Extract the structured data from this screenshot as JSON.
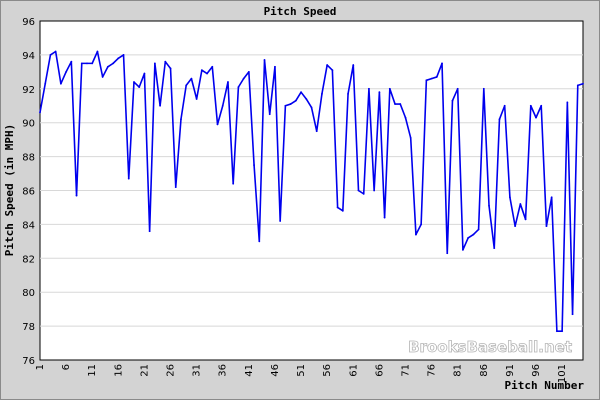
{
  "chart_data": {
    "type": "line",
    "title": "Pitch Speed",
    "xlabel": "Pitch Number",
    "ylabel": "Pitch Speed (in MPH)",
    "ylim": [
      76,
      96
    ],
    "yticks": [
      76,
      78,
      80,
      82,
      84,
      86,
      88,
      90,
      92,
      94,
      96
    ],
    "xlim": [
      1,
      105
    ],
    "xticks": [
      1,
      6,
      11,
      16,
      21,
      26,
      31,
      36,
      41,
      46,
      51,
      56,
      61,
      66,
      71,
      76,
      81,
      86,
      91,
      96,
      101
    ],
    "grid": "horizontal",
    "line_color": "#0000ee",
    "watermark": "BrooksBaseball.net",
    "series": [
      {
        "values": [
          90.6,
          92.3,
          94.0,
          94.2,
          92.3,
          93.0,
          93.6,
          85.7,
          93.5,
          93.5,
          93.5,
          94.2,
          92.7,
          93.3,
          93.5,
          93.8,
          94.0,
          86.7,
          92.4,
          92.1,
          92.9,
          83.6,
          93.5,
          91.0,
          93.6,
          93.2,
          86.2,
          90.2,
          92.2,
          92.6,
          91.4,
          93.1,
          92.9,
          93.3,
          89.9,
          91.0,
          92.4,
          86.4,
          92.1,
          92.6,
          93.0,
          87.5,
          83.0,
          93.7,
          90.5,
          93.3,
          84.2,
          91.0,
          91.1,
          91.3,
          91.8,
          91.4,
          90.9,
          89.5,
          91.7,
          93.4,
          93.1,
          85.0,
          84.8,
          91.7,
          93.4,
          86.0,
          85.8,
          92.0,
          86.0,
          91.8,
          84.4,
          92.0,
          91.1,
          91.1,
          90.3,
          89.1,
          83.4,
          84.0,
          92.5,
          92.6,
          92.7,
          93.5,
          82.3,
          91.3,
          92.0,
          82.5,
          83.2,
          83.4,
          83.7,
          92.0,
          85.1,
          82.6,
          90.2,
          91.0,
          85.6,
          83.9,
          85.2,
          84.3,
          91.0,
          90.3,
          91.0,
          83.9,
          85.6,
          77.7,
          77.7,
          91.2,
          78.7,
          92.2,
          92.3
        ]
      }
    ]
  }
}
